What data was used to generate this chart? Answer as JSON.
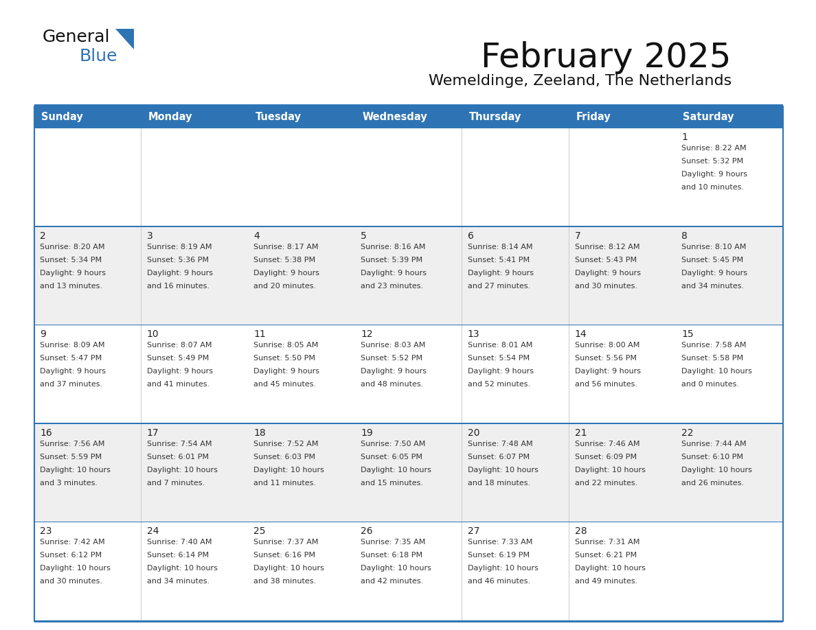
{
  "title": "February 2025",
  "subtitle": "Wemeldinge, Zeeland, The Netherlands",
  "header_bg": "#2E74B5",
  "header_text": "#FFFFFF",
  "day_headers": [
    "Sunday",
    "Monday",
    "Tuesday",
    "Wednesday",
    "Thursday",
    "Friday",
    "Saturday"
  ],
  "alt_row_bg": "#EFEFEF",
  "white_bg": "#FFFFFF",
  "border_color": "#2E74B5",
  "cell_text_color": "#333333",
  "day_num_color": "#222222",
  "title_color": "#111111",
  "subtitle_color": "#111111",
  "logo_general_color": "#111111",
  "logo_blue_color": "#2E74B5",
  "calendar_data": [
    [
      {
        "day": null,
        "info": ""
      },
      {
        "day": null,
        "info": ""
      },
      {
        "day": null,
        "info": ""
      },
      {
        "day": null,
        "info": ""
      },
      {
        "day": null,
        "info": ""
      },
      {
        "day": null,
        "info": ""
      },
      {
        "day": 1,
        "info": "Sunrise: 8:22 AM\nSunset: 5:32 PM\nDaylight: 9 hours\nand 10 minutes."
      }
    ],
    [
      {
        "day": 2,
        "info": "Sunrise: 8:20 AM\nSunset: 5:34 PM\nDaylight: 9 hours\nand 13 minutes."
      },
      {
        "day": 3,
        "info": "Sunrise: 8:19 AM\nSunset: 5:36 PM\nDaylight: 9 hours\nand 16 minutes."
      },
      {
        "day": 4,
        "info": "Sunrise: 8:17 AM\nSunset: 5:38 PM\nDaylight: 9 hours\nand 20 minutes."
      },
      {
        "day": 5,
        "info": "Sunrise: 8:16 AM\nSunset: 5:39 PM\nDaylight: 9 hours\nand 23 minutes."
      },
      {
        "day": 6,
        "info": "Sunrise: 8:14 AM\nSunset: 5:41 PM\nDaylight: 9 hours\nand 27 minutes."
      },
      {
        "day": 7,
        "info": "Sunrise: 8:12 AM\nSunset: 5:43 PM\nDaylight: 9 hours\nand 30 minutes."
      },
      {
        "day": 8,
        "info": "Sunrise: 8:10 AM\nSunset: 5:45 PM\nDaylight: 9 hours\nand 34 minutes."
      }
    ],
    [
      {
        "day": 9,
        "info": "Sunrise: 8:09 AM\nSunset: 5:47 PM\nDaylight: 9 hours\nand 37 minutes."
      },
      {
        "day": 10,
        "info": "Sunrise: 8:07 AM\nSunset: 5:49 PM\nDaylight: 9 hours\nand 41 minutes."
      },
      {
        "day": 11,
        "info": "Sunrise: 8:05 AM\nSunset: 5:50 PM\nDaylight: 9 hours\nand 45 minutes."
      },
      {
        "day": 12,
        "info": "Sunrise: 8:03 AM\nSunset: 5:52 PM\nDaylight: 9 hours\nand 48 minutes."
      },
      {
        "day": 13,
        "info": "Sunrise: 8:01 AM\nSunset: 5:54 PM\nDaylight: 9 hours\nand 52 minutes."
      },
      {
        "day": 14,
        "info": "Sunrise: 8:00 AM\nSunset: 5:56 PM\nDaylight: 9 hours\nand 56 minutes."
      },
      {
        "day": 15,
        "info": "Sunrise: 7:58 AM\nSunset: 5:58 PM\nDaylight: 10 hours\nand 0 minutes."
      }
    ],
    [
      {
        "day": 16,
        "info": "Sunrise: 7:56 AM\nSunset: 5:59 PM\nDaylight: 10 hours\nand 3 minutes."
      },
      {
        "day": 17,
        "info": "Sunrise: 7:54 AM\nSunset: 6:01 PM\nDaylight: 10 hours\nand 7 minutes."
      },
      {
        "day": 18,
        "info": "Sunrise: 7:52 AM\nSunset: 6:03 PM\nDaylight: 10 hours\nand 11 minutes."
      },
      {
        "day": 19,
        "info": "Sunrise: 7:50 AM\nSunset: 6:05 PM\nDaylight: 10 hours\nand 15 minutes."
      },
      {
        "day": 20,
        "info": "Sunrise: 7:48 AM\nSunset: 6:07 PM\nDaylight: 10 hours\nand 18 minutes."
      },
      {
        "day": 21,
        "info": "Sunrise: 7:46 AM\nSunset: 6:09 PM\nDaylight: 10 hours\nand 22 minutes."
      },
      {
        "day": 22,
        "info": "Sunrise: 7:44 AM\nSunset: 6:10 PM\nDaylight: 10 hours\nand 26 minutes."
      }
    ],
    [
      {
        "day": 23,
        "info": "Sunrise: 7:42 AM\nSunset: 6:12 PM\nDaylight: 10 hours\nand 30 minutes."
      },
      {
        "day": 24,
        "info": "Sunrise: 7:40 AM\nSunset: 6:14 PM\nDaylight: 10 hours\nand 34 minutes."
      },
      {
        "day": 25,
        "info": "Sunrise: 7:37 AM\nSunset: 6:16 PM\nDaylight: 10 hours\nand 38 minutes."
      },
      {
        "day": 26,
        "info": "Sunrise: 7:35 AM\nSunset: 6:18 PM\nDaylight: 10 hours\nand 42 minutes."
      },
      {
        "day": 27,
        "info": "Sunrise: 7:33 AM\nSunset: 6:19 PM\nDaylight: 10 hours\nand 46 minutes."
      },
      {
        "day": 28,
        "info": "Sunrise: 7:31 AM\nSunset: 6:21 PM\nDaylight: 10 hours\nand 49 minutes."
      },
      {
        "day": null,
        "info": ""
      }
    ]
  ]
}
